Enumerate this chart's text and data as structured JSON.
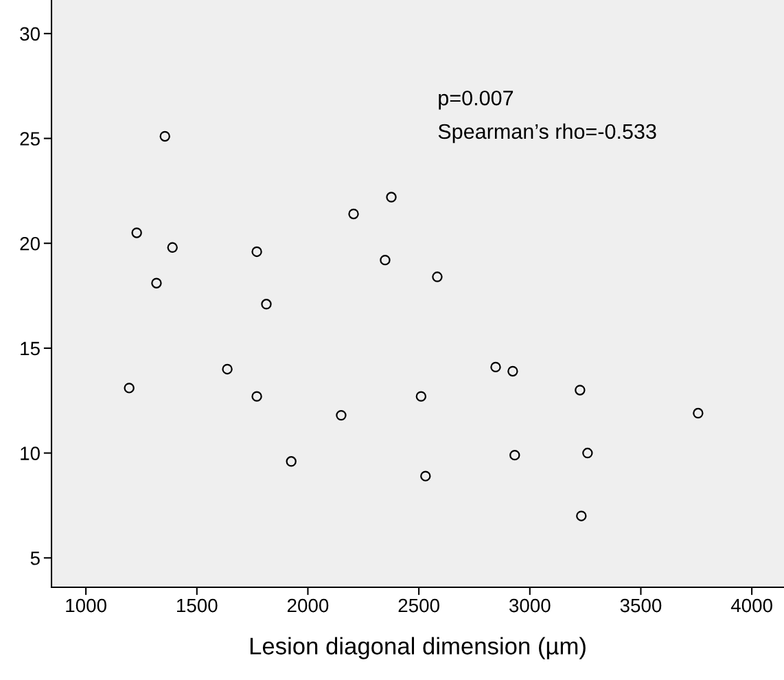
{
  "chart_data": {
    "type": "scatter",
    "xlabel": "Lesion diagonal dimension (µm)",
    "annotations": [
      "p=0.007",
      "Spearman’s rho=-0.533"
    ],
    "series": [
      {
        "color": "#000000",
        "x": [
          1356,
          1229,
          1390,
          1318,
          1195,
          1770,
          1813,
          1637,
          1770,
          1925,
          2206,
          2376,
          2348,
          2583,
          2150,
          2510,
          2530,
          2846,
          2923,
          2932,
          3226,
          3260,
          3232,
          3758
        ],
        "values": [
          25.1,
          20.5,
          19.8,
          18.1,
          13.1,
          19.6,
          17.1,
          14.0,
          12.7,
          9.6,
          21.4,
          22.2,
          19.2,
          18.4,
          11.8,
          12.7,
          8.9,
          14.1,
          13.9,
          9.9,
          13.0,
          10.0,
          7.0,
          11.9
        ]
      }
    ],
    "xlim": [
      845,
      4145
    ],
    "ylim": [
      3.6,
      31.6
    ],
    "xticks": [
      1000,
      1500,
      2000,
      2500,
      3000,
      3500,
      4000
    ],
    "yticks": [
      5,
      10,
      15,
      20,
      25,
      30
    ],
    "marker": "circle",
    "grid": false,
    "legend": false
  }
}
